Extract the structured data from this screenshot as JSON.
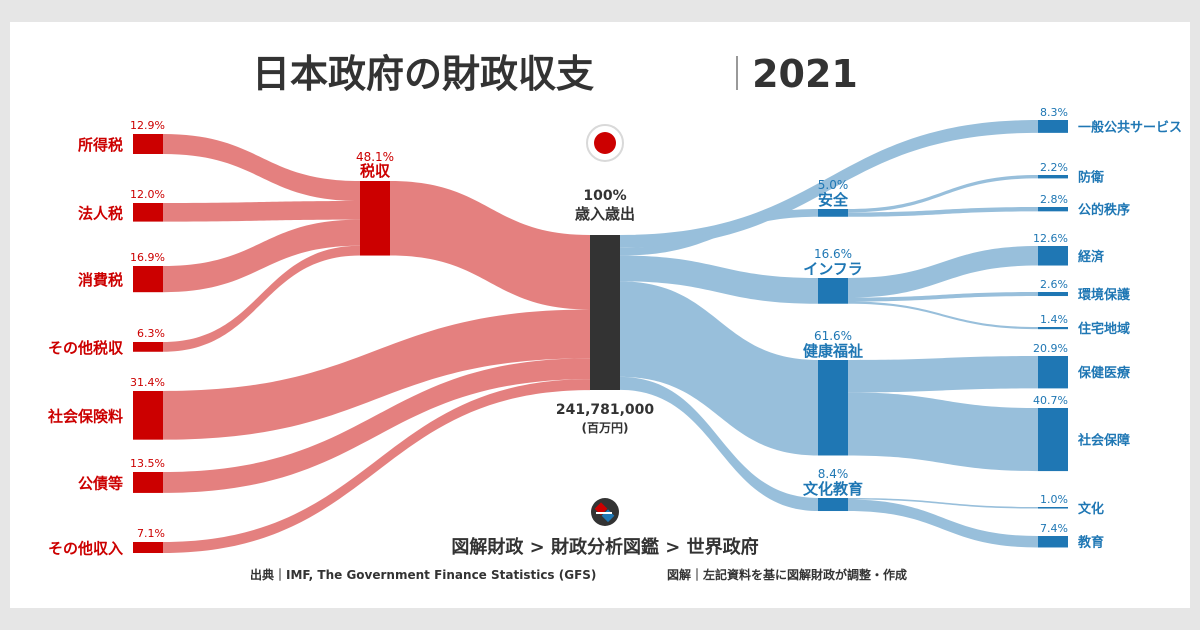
{
  "header": {
    "title": "日本政府の財政収支",
    "year": "2021"
  },
  "center": {
    "percent": "100%",
    "label": "歳入歳出",
    "amount": "241,781,000",
    "unit": "(百万円)"
  },
  "footer": {
    "breadcrumb": "図解財政 > 財政分析図鑑 > 世界政府",
    "source": "出典｜IMF, The Government Finance Statistics (GFS)",
    "credit": "図解｜左記資料を基に図解財政が調整・作成"
  },
  "colors": {
    "revenue": "#cc0000",
    "revenue_flow": "#e4807f",
    "center": "#333333",
    "expense": "#1f77b4",
    "expense_flow": "#98bfdb",
    "flag_red": "#cc0000"
  },
  "icons": {
    "flag": "japan-flag-icon",
    "logo": "zukai-zaisei-logo-icon"
  },
  "chart_data": {
    "type": "sankey",
    "total": {
      "label": "歳入歳出",
      "value": 100
    },
    "revenue_sources": [
      {
        "name": "所得税",
        "value": 12.9,
        "label": "12.9%",
        "group": "税収"
      },
      {
        "name": "法人税",
        "value": 12.0,
        "label": "12.0%",
        "group": "税収"
      },
      {
        "name": "消費税",
        "value": 16.9,
        "label": "16.9%",
        "group": "税収"
      },
      {
        "name": "その他税収",
        "value": 6.3,
        "label": "6.3%",
        "group": "税収"
      },
      {
        "name": "社会保険料",
        "value": 31.4,
        "label": "31.4%",
        "group": null
      },
      {
        "name": "公債等",
        "value": 13.5,
        "label": "13.5%",
        "group": null
      },
      {
        "name": "その他収入",
        "value": 7.1,
        "label": "7.1%",
        "group": null
      }
    ],
    "revenue_groups": [
      {
        "name": "税収",
        "value": 48.1,
        "label": "48.1%"
      }
    ],
    "expense_groups": [
      {
        "name": "安全",
        "value": 5.0,
        "label": "5.0%"
      },
      {
        "name": "インフラ",
        "value": 16.6,
        "label": "16.6%"
      },
      {
        "name": "健康福祉",
        "value": 61.6,
        "label": "61.6%"
      },
      {
        "name": "文化教育",
        "value": 8.4,
        "label": "8.4%"
      }
    ],
    "expense_items": [
      {
        "name": "一般公共サービス",
        "value": 8.3,
        "label": "8.3%",
        "group": null
      },
      {
        "name": "防衛",
        "value": 2.2,
        "label": "2.2%",
        "group": "安全"
      },
      {
        "name": "公的秩序",
        "value": 2.8,
        "label": "2.8%",
        "group": "安全"
      },
      {
        "name": "経済",
        "value": 12.6,
        "label": "12.6%",
        "group": "インフラ"
      },
      {
        "name": "環境保護",
        "value": 2.6,
        "label": "2.6%",
        "group": "インフラ"
      },
      {
        "name": "住宅地域",
        "value": 1.4,
        "label": "1.4%",
        "group": "インフラ"
      },
      {
        "name": "保健医療",
        "value": 20.9,
        "label": "20.9%",
        "group": "健康福祉"
      },
      {
        "name": "社会保障",
        "value": 40.7,
        "label": "40.7%",
        "group": "健康福祉"
      },
      {
        "name": "文化",
        "value": 1.0,
        "label": "1.0%",
        "group": "文化教育"
      },
      {
        "name": "教育",
        "value": 7.4,
        "label": "7.4%",
        "group": "文化教育"
      }
    ]
  }
}
